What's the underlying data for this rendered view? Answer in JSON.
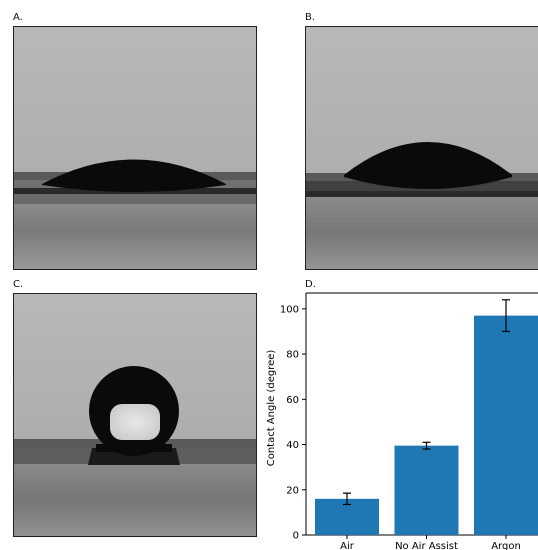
{
  "panels": {
    "a": {
      "label": "A."
    },
    "b": {
      "label": "B."
    },
    "c": {
      "label": "C."
    },
    "d": {
      "label": "D."
    }
  },
  "colors": {
    "bar": "#1f77b4",
    "background_gray": "#b4b4b4",
    "droplet": "#0a0a0a"
  },
  "chart_data": {
    "type": "bar",
    "categories": [
      "Air",
      "No Air Assist",
      "Argon"
    ],
    "values": [
      16,
      39.5,
      97
    ],
    "errors": [
      2.5,
      1.5,
      7
    ],
    "title": "",
    "xlabel": "",
    "ylabel": "Contact Angle (degree)",
    "ylim": [
      0,
      107
    ],
    "yticks": [
      0,
      20,
      40,
      60,
      80,
      100
    ],
    "grid": false,
    "color": "#1f77b4"
  }
}
